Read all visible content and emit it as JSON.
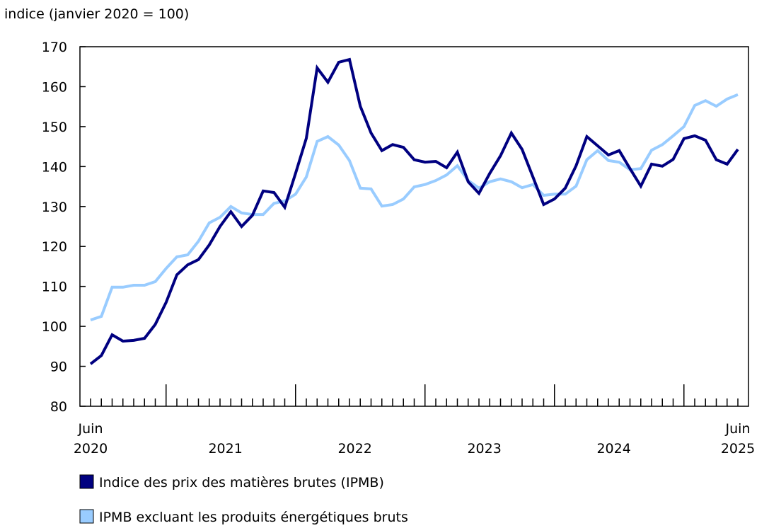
{
  "chart_data": {
    "type": "line",
    "title": "",
    "ylabel": "indice (janvier 2020 = 100)",
    "xlabel": "",
    "ylim": [
      80,
      170
    ],
    "yticks": [
      80,
      90,
      100,
      110,
      120,
      130,
      140,
      150,
      160,
      170
    ],
    "x_start": "2020-06",
    "x_end": "2025-06",
    "x_labels": [
      {
        "month_index": 0,
        "line1": "Juin",
        "line2": "2020"
      },
      {
        "month_index": 12.5,
        "line1": "",
        "line2": "2021"
      },
      {
        "month_index": 24.5,
        "line1": "",
        "line2": "2022"
      },
      {
        "month_index": 36.5,
        "line1": "",
        "line2": "2023"
      },
      {
        "month_index": 48.5,
        "line1": "",
        "line2": "2024"
      },
      {
        "month_index": 60,
        "line1": "Juin",
        "line2": "2025"
      }
    ],
    "grid": false,
    "legend_position": "bottom",
    "series": [
      {
        "name": "Indice des prix des matières brutes (IPMB)",
        "color": "#000080",
        "values": [
          90.6,
          92.7,
          97.9,
          96.3,
          96.5,
          97.0,
          100.5,
          106.0,
          112.9,
          115.4,
          116.7,
          120.4,
          125.0,
          128.7,
          125.0,
          127.8,
          133.9,
          133.5,
          129.8,
          138.3,
          147.1,
          164.7,
          161.1,
          166.1,
          166.8,
          155.1,
          148.4,
          144.0,
          145.5,
          144.8,
          141.7,
          141.1,
          141.3,
          139.7,
          143.6,
          136.2,
          133.3,
          138.3,
          142.7,
          148.4,
          144.3,
          137.4,
          130.5,
          131.9,
          134.6,
          140.2,
          147.5,
          145.2,
          142.9,
          144.0,
          139.5,
          135.1,
          140.6,
          140.1,
          141.8,
          147.0,
          147.7,
          146.6,
          141.7,
          140.6,
          144.3
        ]
      },
      {
        "name": "IPMB excluant les produits énergétiques bruts",
        "color": "#99ccff",
        "values": [
          101.6,
          102.5,
          109.8,
          109.8,
          110.3,
          110.3,
          111.2,
          114.5,
          117.4,
          117.9,
          121.3,
          125.9,
          127.3,
          130.0,
          128.4,
          128.0,
          128.0,
          130.8,
          131.4,
          133.1,
          137.4,
          146.3,
          147.5,
          145.4,
          141.5,
          134.6,
          134.4,
          130.1,
          130.5,
          131.9,
          134.9,
          135.5,
          136.5,
          137.9,
          140.2,
          136.5,
          134.6,
          136.2,
          136.9,
          136.2,
          134.7,
          135.5,
          132.8,
          133.1,
          133.1,
          135.1,
          141.7,
          144.0,
          141.5,
          141.1,
          139.2,
          139.5,
          144.1,
          145.5,
          147.7,
          150.0,
          155.3,
          156.5,
          155.1,
          156.9,
          158.0
        ]
      }
    ]
  }
}
